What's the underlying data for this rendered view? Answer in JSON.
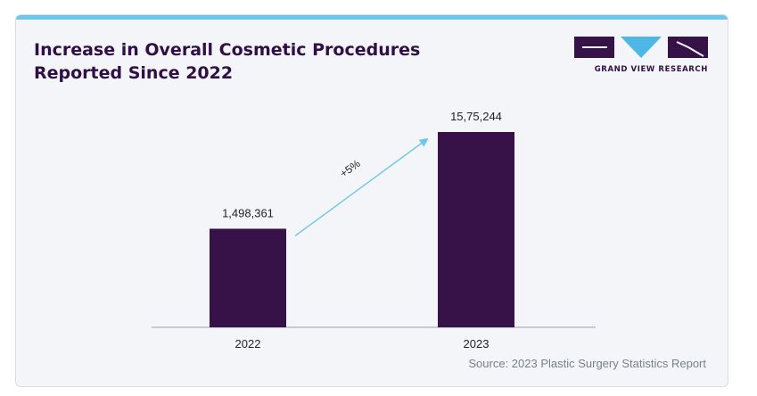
{
  "title": "Increase in Overall Cosmetic Procedures Reported Since 2022",
  "brand": "GRAND VIEW RESEARCH",
  "source": "Source: 2023 Plastic Surgery Statistics Report",
  "colors": {
    "bar": "#361249",
    "accent": "#6ec6ea",
    "title": "#2f0f45",
    "axis": "#b9bec5"
  },
  "chart_data": {
    "type": "bar",
    "categories": [
      "2022",
      "2023"
    ],
    "values": [
      1498361,
      1575244
    ],
    "value_labels": [
      "1,498,361",
      "15,75,244"
    ],
    "annotation": "+5%",
    "xlabel": "",
    "ylabel": "",
    "grid": false
  }
}
